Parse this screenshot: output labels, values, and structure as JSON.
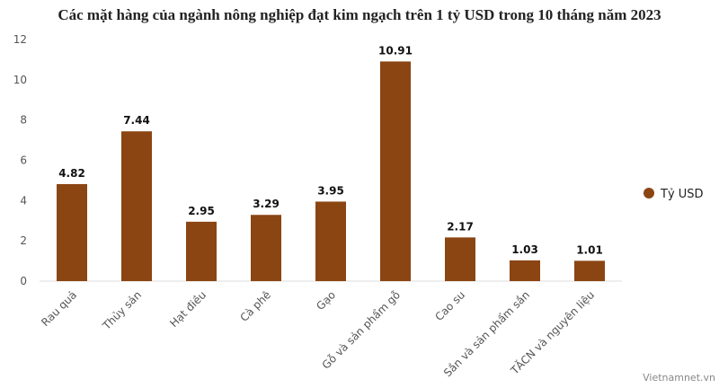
{
  "chart_data": {
    "type": "bar",
    "title": "Các mặt hàng của ngành nông nghiệp đạt kim ngạch trên 1 tỷ USD trong 10 tháng năm 2023",
    "categories": [
      "Rau quả",
      "Thủy sản",
      "Hạt điều",
      "Cà phê",
      "Gạo",
      "Gỗ và sản phẩm gỗ",
      "Cao su",
      "Sắn và sản phẩm sắn",
      "TĂCN và nguyên liệu"
    ],
    "series": [
      {
        "name": "Tỷ USD",
        "color": "#8b4513",
        "values": [
          4.82,
          7.44,
          2.95,
          3.29,
          3.95,
          10.91,
          2.17,
          1.03,
          1.01
        ]
      }
    ],
    "ylim": [
      0,
      12
    ],
    "yticks": [
      0,
      2,
      4,
      6,
      8,
      10,
      12
    ],
    "grid": false,
    "legend": "right",
    "source": "Vietnamnet.vn"
  }
}
